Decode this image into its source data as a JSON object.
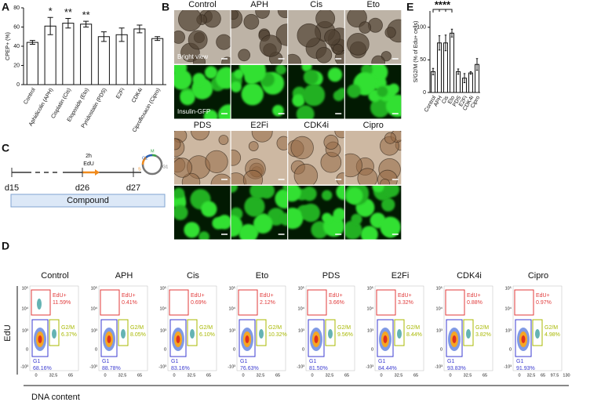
{
  "chart_data": [
    {
      "type": "bar",
      "y_label": "CPEP+ (%)",
      "categories": [
        "Control",
        "Aphidicolin (APH)",
        "Cisplatin (Cis)",
        "Etoposide (Eto)",
        "Pyridostatin (PDS)",
        "E2Fi",
        "CDK4i",
        "Ciprofloxacin (Cipro)"
      ],
      "values": [
        44,
        61,
        64,
        63,
        50,
        52,
        58,
        48
      ],
      "errors": [
        2,
        9,
        5,
        3,
        5,
        7,
        4,
        2
      ],
      "significance": [
        null,
        "*",
        "**",
        "**",
        null,
        null,
        null,
        null
      ],
      "color": "#ffffff",
      "ylim": [
        0,
        80
      ],
      "yticks": [
        0,
        20,
        40,
        60,
        80
      ]
    },
    {
      "type": "bar",
      "y_label": "S/G2/M (% of Edu+ cells)",
      "categories": [
        "Control",
        "APH",
        "Cis",
        "Eto",
        "PDS",
        "E2Fi",
        "CDK4i",
        "Cipro"
      ],
      "values": [
        32,
        76,
        76,
        91,
        32,
        22,
        30,
        43
      ],
      "errors": [
        5,
        11,
        12,
        6,
        4,
        7,
        2,
        9
      ],
      "annotation": "****",
      "color": "#ffffff",
      "ylim": [
        0,
        125
      ],
      "yticks": [
        0,
        50,
        100
      ]
    }
  ],
  "panel_labels": [
    "A",
    "B",
    "C",
    "D",
    "E"
  ],
  "images": {
    "columns": [
      "Control",
      "APH",
      "Cis",
      "Eto",
      "PDS",
      "E2Fi",
      "CDK4i",
      "Cipro"
    ],
    "rows": [
      "Bright view",
      "Insulin-GFP"
    ]
  },
  "timeline": {
    "days": [
      "d15",
      "d26",
      "d27"
    ],
    "pulse": "2h",
    "label": "EdU",
    "compound": "Compound",
    "phases": [
      "G2",
      "M",
      "S",
      "G1"
    ]
  },
  "flow": {
    "y_label": "EdU",
    "x_label": "DNA content",
    "y_ticks": [
      "10⁵",
      "10⁴",
      "10³",
      "0",
      "-10³"
    ],
    "x_ticks": [
      "0",
      "32.5",
      "65"
    ],
    "x_ticks_last": [
      "0",
      "32.5",
      "65",
      "97.5",
      "130"
    ],
    "gates": [
      "EdU+",
      "G2/M",
      "G1"
    ],
    "plots": [
      {
        "title": "Control",
        "edu": "11.59%",
        "g2m": "6.37%",
        "g1": "68.16%"
      },
      {
        "title": "APH",
        "edu": "0.41%",
        "g2m": "8.05%",
        "g1": "88.78%"
      },
      {
        "title": "Cis",
        "edu": "0.69%",
        "g2m": "6.10%",
        "g1": "83.16%"
      },
      {
        "title": "Eto",
        "edu": "2.12%",
        "g2m": "10.32%",
        "g1": "76.63%"
      },
      {
        "title": "PDS",
        "edu": "3.66%",
        "g2m": "9.56%",
        "g1": "81.50%"
      },
      {
        "title": "E2Fi",
        "edu": "3.32%",
        "g2m": "8.44%",
        "g1": "84.44%"
      },
      {
        "title": "CDK4i",
        "edu": "0.88%",
        "g2m": "3.82%",
        "g1": "93.83%"
      },
      {
        "title": "Cipro",
        "edu": "0.97%",
        "g2m": "4.98%",
        "g1": "91.93%"
      }
    ]
  }
}
